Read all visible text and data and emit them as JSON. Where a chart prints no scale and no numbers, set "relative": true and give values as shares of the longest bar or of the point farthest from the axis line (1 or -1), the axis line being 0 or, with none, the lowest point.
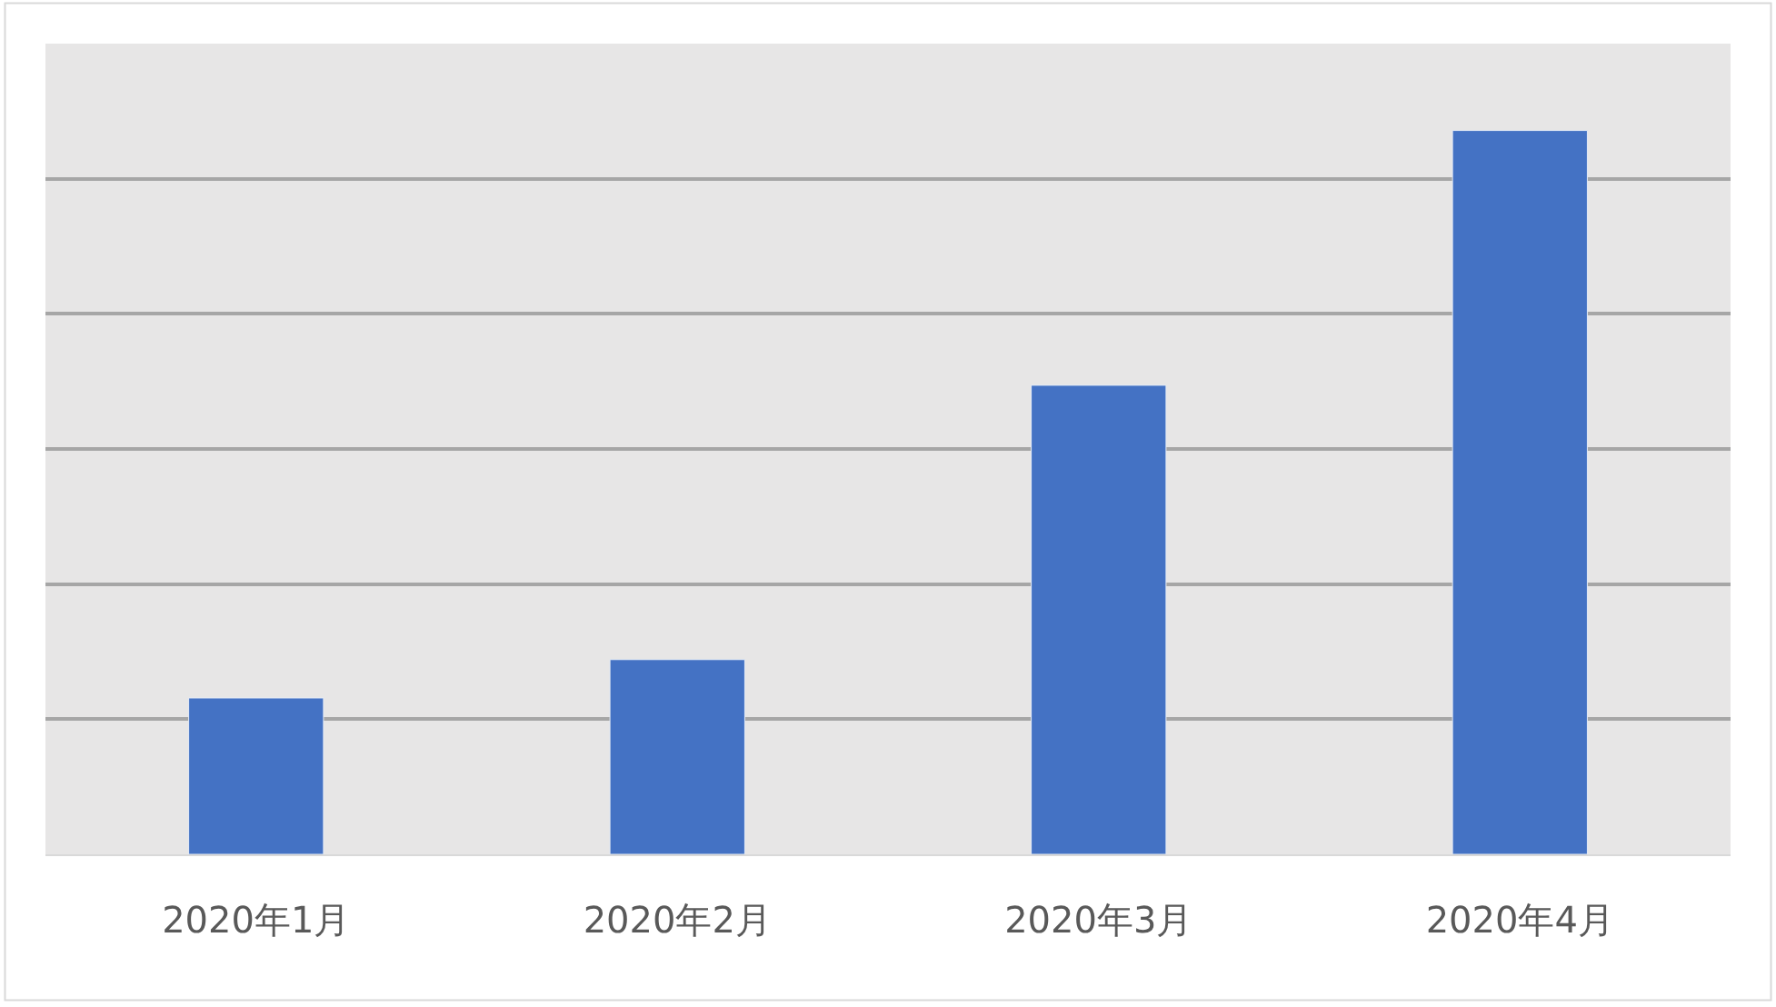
{
  "chart_data": {
    "type": "bar",
    "relative": true,
    "grid": "y",
    "categories": [
      "2020年1月",
      "2020年2月",
      "2020年3月",
      "2020年4月"
    ],
    "series": [
      {
        "color": "#4472c4",
        "values": [
          0.216,
          0.269,
          0.648,
          1
        ]
      }
    ]
  }
}
